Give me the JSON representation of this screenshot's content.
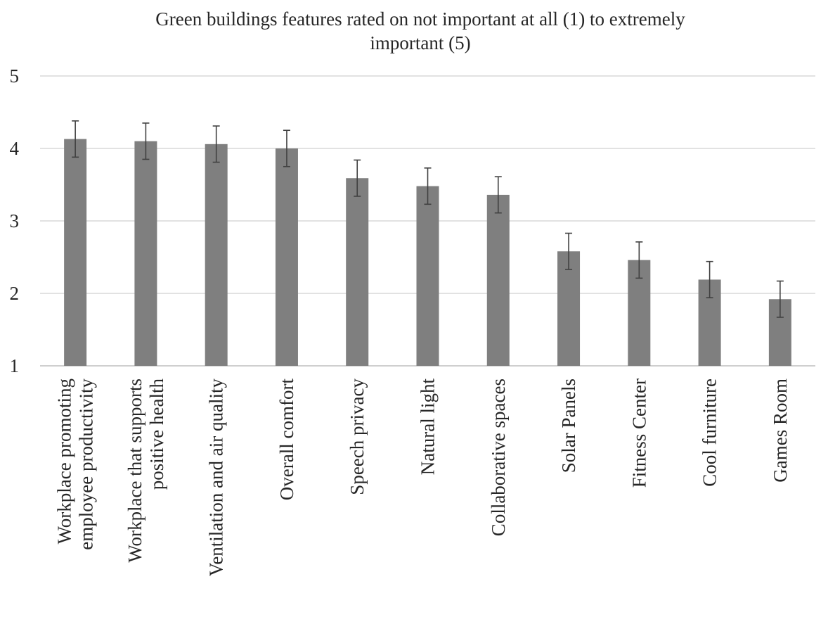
{
  "chart_data": {
    "type": "bar",
    "title_lines": [
      "Green buildings features rated on not important at all (1) to extremely",
      "important (5)"
    ],
    "categories": [
      [
        "Workplace promoting",
        "employee productivity"
      ],
      [
        "Workplace that supports",
        "positive health"
      ],
      [
        "Ventilation and air quality"
      ],
      [
        "Overall comfort"
      ],
      [
        "Speech privacy"
      ],
      [
        "Natural light"
      ],
      [
        "Collaborative spaces"
      ],
      [
        "Solar Panels"
      ],
      [
        "Fitness Center"
      ],
      [
        "Cool furniture"
      ],
      [
        "Games Room"
      ]
    ],
    "values": [
      4.13,
      4.1,
      4.06,
      4.0,
      3.59,
      3.48,
      3.36,
      2.58,
      2.46,
      2.19,
      1.92
    ],
    "error": [
      0.25,
      0.25,
      0.25,
      0.25,
      0.25,
      0.25,
      0.25,
      0.25,
      0.25,
      0.25,
      0.25
    ],
    "ylim": [
      1,
      5
    ],
    "yticks": [
      "1",
      "2",
      "3",
      "4",
      "5"
    ],
    "grid": true,
    "bar_color": "#7f7f7f",
    "xlabel": "",
    "ylabel": ""
  }
}
